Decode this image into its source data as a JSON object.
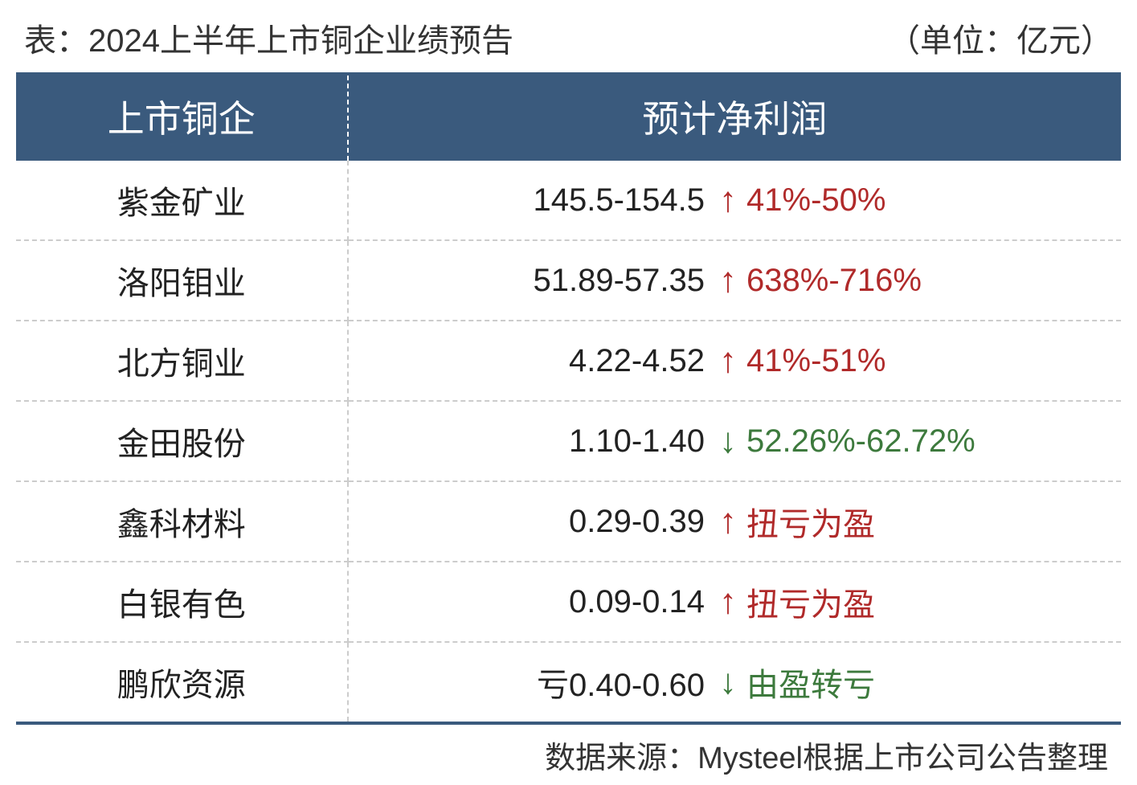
{
  "header": {
    "title_left": "表：2024上半年上市铜企业绩预告",
    "title_right": "（单位：亿元）"
  },
  "table": {
    "type": "table",
    "columns": [
      "上市铜企",
      "预计净利润"
    ],
    "header_bg": "#3a5a7d",
    "header_fg": "#ffffff",
    "border_color": "#3a5a7d",
    "dash_color": "#cccccc",
    "up_color": "#b02a2a",
    "down_color": "#3d7a3d",
    "text_color": "#222222",
    "header_fontsize": 46,
    "body_fontsize": 40,
    "rows": [
      {
        "company": "紫金矿业",
        "value": "145.5-154.5",
        "direction": "up",
        "arrow": "↑",
        "change": "41%-50%"
      },
      {
        "company": "洛阳钼业",
        "value": "51.89-57.35",
        "direction": "up",
        "arrow": "↑",
        "change": "638%-716%"
      },
      {
        "company": "北方铜业",
        "value": "4.22-4.52",
        "direction": "up",
        "arrow": "↑",
        "change": "41%-51%"
      },
      {
        "company": "金田股份",
        "value": "1.10-1.40",
        "direction": "down",
        "arrow": "↓",
        "change": "52.26%-62.72%"
      },
      {
        "company": "鑫科材料",
        "value": "0.29-0.39",
        "direction": "up",
        "arrow": "↑",
        "change": "扭亏为盈"
      },
      {
        "company": "白银有色",
        "value": "0.09-0.14",
        "direction": "up",
        "arrow": "↑",
        "change": "扭亏为盈"
      },
      {
        "company": "鹏欣资源",
        "value": "亏0.40-0.60",
        "direction": "down",
        "arrow": "↓",
        "change": "由盈转亏"
      }
    ]
  },
  "footer": {
    "source_text": "数据来源：Mysteel根据上市公司公告整理"
  }
}
